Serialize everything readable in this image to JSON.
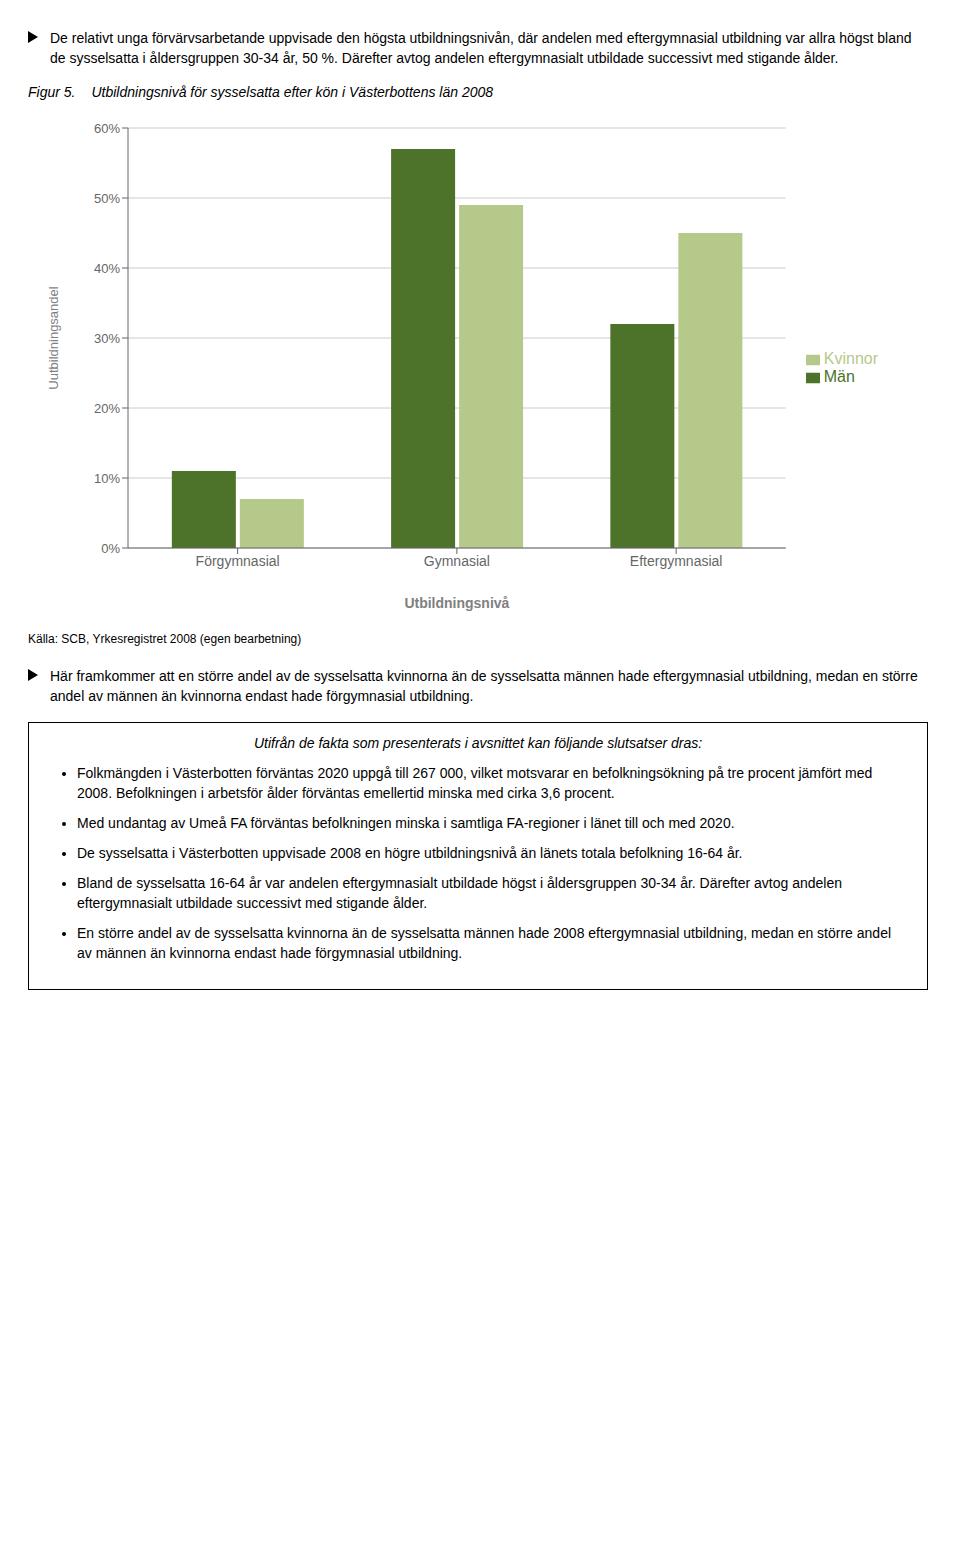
{
  "chart_data": {
    "type": "bar",
    "title": "Utbildningsnivå för sysselsatta efter kön i Västerbottens län 2008",
    "categories": [
      "Förgymnasial",
      "Gymnasial",
      "Eftergymnasial"
    ],
    "series": [
      {
        "name": "Män",
        "color": "#4d7229",
        "values": [
          0.11,
          0.57,
          0.32
        ]
      },
      {
        "name": "Kvinnor",
        "color": "#b5c98a",
        "values": [
          0.07,
          0.49,
          0.45
        ]
      }
    ],
    "xlabel": "Utbildningsnivå",
    "ylabel": "Uutbildningsandel",
    "ylim": [
      0,
      0.6
    ],
    "yticks": [
      {
        "value": 0.0,
        "label": "0%"
      },
      {
        "value": 0.1,
        "label": "10%"
      },
      {
        "value": 0.2,
        "label": "20%"
      },
      {
        "value": 0.3,
        "label": "30%"
      },
      {
        "value": 0.4,
        "label": "40%"
      },
      {
        "value": 0.5,
        "label": "50%"
      },
      {
        "value": 0.6,
        "label": "60%"
      }
    ],
    "grid": true,
    "legend": "right",
    "annotations": [
      "De relativt unga förvärvsarbetande uppvisade den högsta utbildningsnivån, där andelen med eftergymnasial utbildning var allra högst bland de sysselsatta i åldersgruppen 30-34 år, 50 %. Därefter avtog andelen eftergymnasialt utbildade successivt med stigande ålder.",
      "Figur 5.",
      "Källa: SCB, Yrkesregistret 2008 (egen bearbetning)",
      "Här framkommer att en större andel av de sysselsatta kvinnorna än de sysselsatta männen hade eftergymnasial utbildning, medan en större andel av männen än kvinnorna endast hade förgymnasial utbildning.",
      "Utifrån de fakta som presenterats i avsnittet kan följande slutsatser dras:",
      "Folkmängden i Västerbotten förväntas 2020 uppgå till 267 000, vilket motsvarar en befolkningsökning på tre procent jämfört med 2008. Befolkningen i arbetsför ålder förväntas emellertid minska med cirka 3,6 procent.",
      "Med undantag av Umeå FA förväntas befolkningen minska i samtliga FA-regioner i länet till och med 2020.",
      "De sysselsatta i Västerbotten uppvisade 2008 en högre utbildningsnivå än länets totala befolkning 16-64 år.",
      "Bland de sysselsatta 16-64 år var andelen eftergymnasialt utbildade högst i åldersgruppen 30-34 år. Därefter avtog andelen eftergymnasialt utbildade successivt med stigande ålder.",
      "En större andel av de sysselsatta kvinnorna än de sysselsatta männen hade 2008 eftergymnasial utbildning, medan en större andel av männen än kvinnorna endast hade förgymnasial utbildning."
    ]
  }
}
